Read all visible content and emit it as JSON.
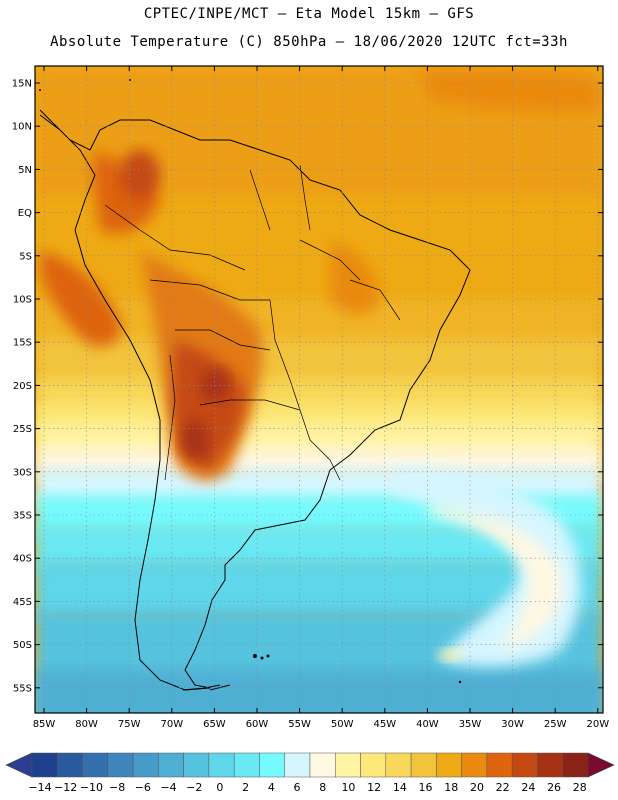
{
  "header": {
    "line1": "CPTEC/INPE/MCT –  Eta Model 15km – GFS",
    "line2": "Absolute Temperature (C) 850hPa – 18/06/2020 12UTC fct=33h"
  },
  "map": {
    "lat_labels": [
      "15N",
      "10N",
      "5N",
      "EQ",
      "5S",
      "10S",
      "15S",
      "20S",
      "25S",
      "30S",
      "35S",
      "40S",
      "45S",
      "50S",
      "55S"
    ],
    "lon_labels": [
      "85W",
      "80W",
      "75W",
      "70W",
      "65W",
      "60W",
      "55W",
      "50W",
      "45W",
      "40W",
      "35W",
      "30W",
      "25W",
      "20W"
    ]
  },
  "colorbar": {
    "labels": [
      "-14",
      "-12",
      "-10",
      "-8",
      "-6",
      "-4",
      "-2",
      "0",
      "2",
      "4",
      "6",
      "8",
      "10",
      "12",
      "14",
      "16",
      "18",
      "20",
      "22",
      "24",
      "26",
      "28"
    ],
    "colors": [
      "#1f3f8f",
      "#2a5a9e",
      "#3570ae",
      "#3f86bd",
      "#479bc8",
      "#4fafd3",
      "#56c3de",
      "#5fd6ea",
      "#6ae9f5",
      "#75fbff",
      "#d6f6ff",
      "#fff8e2",
      "#fff3a4",
      "#fde87a",
      "#f8d85a",
      "#f2c43c",
      "#eeaa14",
      "#ea8a10",
      "#de6410",
      "#c44812",
      "#a63216",
      "#8a2216"
    ],
    "end_left": "#2a3f8f",
    "end_right": "#7a0a2e"
  }
}
